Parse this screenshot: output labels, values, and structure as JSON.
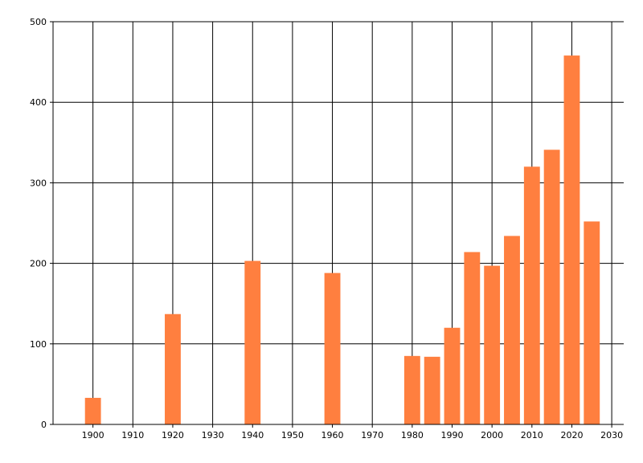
{
  "chart_data": {
    "type": "bar",
    "title": "",
    "xlabel": "",
    "ylabel": "",
    "xlim": [
      1890,
      2033
    ],
    "ylim": [
      0,
      500
    ],
    "x_ticks": [
      1900,
      1910,
      1920,
      1930,
      1940,
      1950,
      1960,
      1970,
      1980,
      1990,
      2000,
      2010,
      2020,
      2030
    ],
    "y_ticks": [
      0,
      100,
      200,
      300,
      400,
      500
    ],
    "grid": true,
    "bar_width_years": 4,
    "bar_color": "#FF7F3F",
    "x": [
      1900,
      1920,
      1940,
      1960,
      1980,
      1985,
      1990,
      1995,
      2000,
      2005,
      2010,
      2015,
      2020,
      2025
    ],
    "values": [
      33,
      137,
      203,
      188,
      85,
      84,
      120,
      214,
      197,
      234,
      320,
      341,
      458,
      252
    ]
  }
}
